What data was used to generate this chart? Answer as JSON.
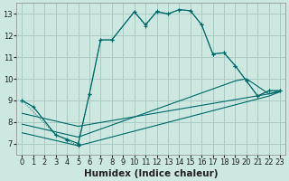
{
  "xlabel": "Humidex (Indice chaleur)",
  "bg_color": "#cce8e0",
  "grid_color": "#aaccc4",
  "line_color": "#006868",
  "xlim": [
    -0.5,
    23.5
  ],
  "ylim": [
    6.5,
    13.5
  ],
  "xticks": [
    0,
    1,
    2,
    3,
    4,
    5,
    6,
    7,
    8,
    9,
    10,
    11,
    12,
    13,
    14,
    15,
    16,
    17,
    18,
    19,
    20,
    21,
    22,
    23
  ],
  "yticks": [
    7,
    8,
    9,
    10,
    11,
    12,
    13
  ],
  "tick_fontsize": 6,
  "label_fontsize": 7.5,
  "curve1_x": [
    0,
    1,
    3,
    4,
    5,
    6,
    7,
    8,
    10,
    11,
    12,
    13,
    14,
    15,
    16,
    17,
    18,
    19,
    20,
    21,
    22,
    23
  ],
  "curve1_y": [
    9.0,
    8.7,
    7.4,
    7.2,
    7.0,
    9.3,
    11.8,
    11.8,
    13.1,
    12.5,
    13.1,
    13.0,
    13.2,
    13.15,
    12.5,
    11.15,
    11.2,
    10.6,
    9.9,
    9.2,
    9.45,
    9.45
  ],
  "curve2_x": [
    0,
    3,
    4,
    5,
    6,
    7,
    8,
    10,
    11,
    12,
    13,
    14,
    15,
    16,
    17,
    18,
    19,
    20,
    21,
    22,
    23
  ],
  "curve2_y": [
    9.0,
    7.4,
    7.15,
    6.9,
    9.3,
    11.8,
    11.8,
    13.1,
    12.45,
    13.15,
    13.0,
    13.2,
    13.15,
    12.5,
    11.15,
    11.2,
    10.6,
    9.9,
    9.2,
    9.45,
    9.45
  ],
  "line1_x": [
    0,
    5,
    22,
    23
  ],
  "line1_y": [
    7.5,
    6.9,
    9.2,
    9.4
  ],
  "line2_x": [
    0,
    5,
    19,
    20,
    22,
    23
  ],
  "line2_y": [
    7.9,
    7.3,
    9.9,
    10.0,
    9.3,
    9.4
  ],
  "line3_x": [
    0,
    5,
    22,
    23
  ],
  "line3_y": [
    8.4,
    7.8,
    9.3,
    9.45
  ]
}
